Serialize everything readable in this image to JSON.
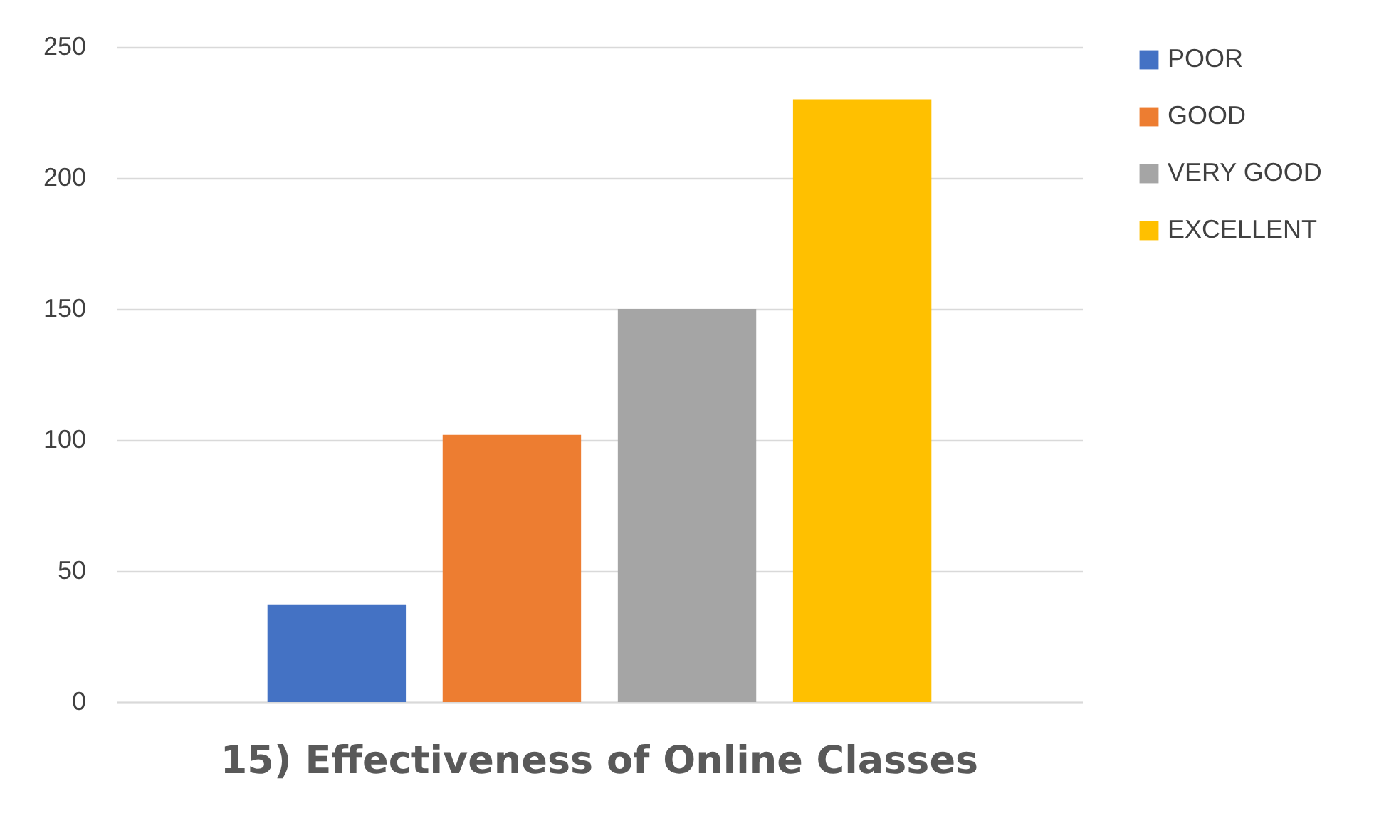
{
  "chart_data": {
    "type": "bar",
    "title": "15)  Effectiveness of Online Classes",
    "categories": [
      null
    ],
    "series": [
      {
        "name": "POOR",
        "color": "#4472c4",
        "values": [
          37
        ]
      },
      {
        "name": "GOOD",
        "color": "#ed7d31",
        "values": [
          102
        ]
      },
      {
        "name": "VERY GOOD",
        "color": "#a5a5a5",
        "values": [
          150
        ]
      },
      {
        "name": "EXCELLENT",
        "color": "#ffc000",
        "values": [
          230
        ]
      }
    ],
    "ylim": [
      0,
      250
    ],
    "yticks": [
      0,
      50,
      100,
      150,
      200,
      250
    ],
    "grid": "y",
    "legend": "right",
    "tick_labels": "y"
  }
}
